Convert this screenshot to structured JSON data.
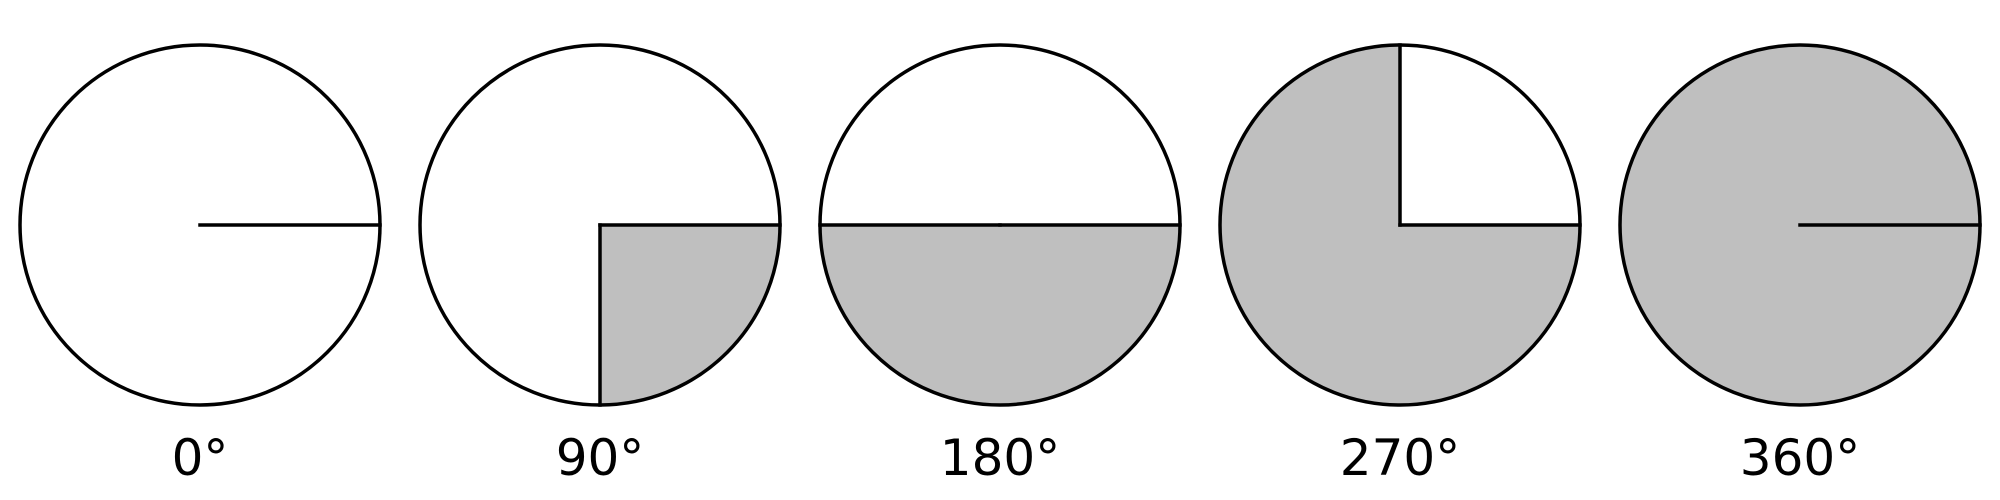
{
  "diagram": {
    "circles": [
      {
        "label": "0°",
        "angle_deg": 0
      },
      {
        "label": "90°",
        "angle_deg": 90
      },
      {
        "label": "180°",
        "angle_deg": 180
      },
      {
        "label": "270°",
        "angle_deg": 270
      },
      {
        "label": "360°",
        "angle_deg": 360
      }
    ],
    "colors": {
      "fill": "#bfbfbf",
      "stroke": "#000000",
      "background": "#ffffff"
    }
  }
}
